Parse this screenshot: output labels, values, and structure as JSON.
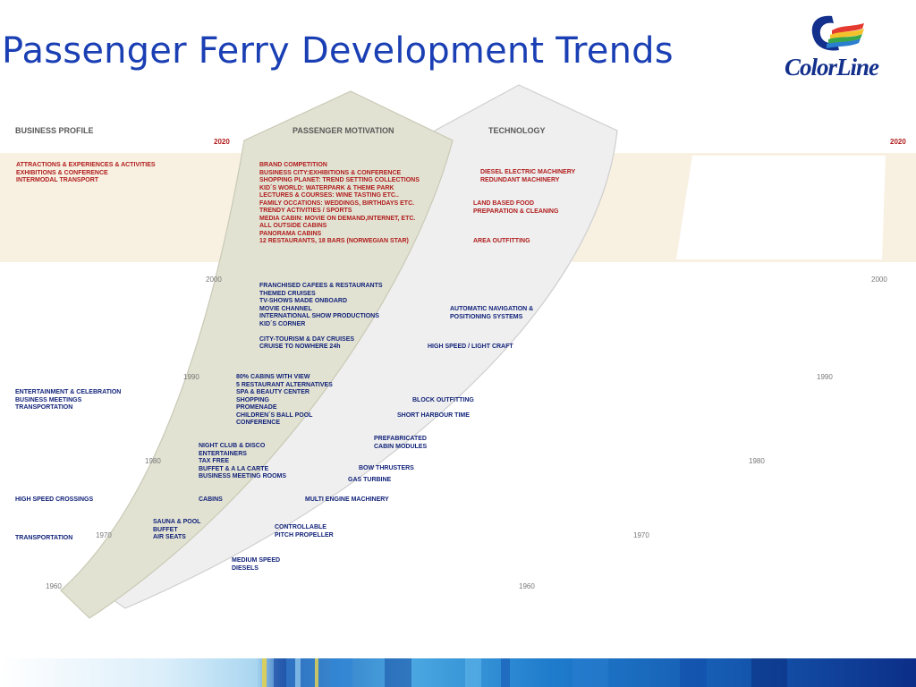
{
  "title": "Passenger Ferry Development Trends",
  "logo": {
    "text": "ColorLine"
  },
  "headers": {
    "business_profile": "BUSINESS PROFILE",
    "passenger_motivation": "PASSENGER MOTIVATION",
    "technology": "TECHNOLOGY"
  },
  "years": {
    "y2020": "2020",
    "y2000": "2000",
    "y1990": "1990",
    "y1980": "1980",
    "y1970": "1970",
    "y1960": "1960"
  },
  "business_2020": [
    "ATTRACTIONS & EXPERIENCES & ACTIVITIES",
    "EXHIBITIONS & CONFERENCE",
    "INTERMODAL TRANSPORT"
  ],
  "motivation_2020": [
    "BRAND COMPETITION",
    "BUSINESS CITY:EXHIBITIONS & CONFERENCE",
    "SHOPPING PLANET: TREND SETTING COLLECTIONS",
    "KID´S  WORLD: WATERPARK & THEME PARK",
    "LECTURES & COURSES: WINE TASTING ETC..",
    "FAMILY OCCATIONS: WEDDINGS, BIRTHDAYS ETC.",
    "TRENDY ACTIVITIES / SPORTS",
    "MEDIA CABIN: MOVIE ON DEMAND,INTERNET, ETC.",
    "ALL OUTSIDE CABINS",
    "PANORAMA CABINS",
    "12  RESTAURANTS, 18 BARS (NORWEGIAN STAR)"
  ],
  "tech_2020_a": [
    "DIESEL ELECTRIC MACHINERY",
    "REDUNDANT MACHINERY"
  ],
  "tech_2020_b": [
    "LAND BASED FOOD",
    "PREPARATION & CLEANING"
  ],
  "tech_2020_c": [
    "AREA OUTFITTING"
  ],
  "motivation_2000": [
    "FRANCHISED CAFEES & RESTAURANTS",
    "THEMED CRUISES",
    "TV-SHOWS MADE ONBOARD",
    "MOVIE CHANNEL",
    "INTERNATIONAL SHOW PRODUCTIONS",
    "KID´S CORNER",
    "",
    "CITY-TOURISM & DAY CRUISES",
    "CRUISE TO NOWHERE 24h"
  ],
  "tech_2000_a": [
    "AUTOMATIC NAVIGATION &",
    "POSITIONING SYSTEMS"
  ],
  "tech_2000_b": [
    "HIGH SPEED / LIGHT CRAFT"
  ],
  "business_1990": [
    "ENTERTAINMENT & CELEBRATION",
    "BUSINESS MEETINGS",
    "TRANSPORTATION"
  ],
  "motivation_1990": [
    "80% CABINS WITH VIEW",
    "5  RESTAURANT ALTERNATIVES",
    "SPA & BEAUTY CENTER",
    "SHOPPING",
    "PROMENADE",
    "CHILDREN´S BALL POOL",
    "CONFERENCE"
  ],
  "tech_1990_a": [
    "BLOCK OUTFITTING"
  ],
  "tech_1990_b": [
    "SHORT HARBOUR TIME"
  ],
  "tech_1990_c": [
    "PREFABRICATED",
    "CABIN MODULES"
  ],
  "motivation_1980": [
    "NIGHT CLUB & DISCO",
    "ENTERTAINERS",
    "TAX FREE",
    "BUFFET & A LA CARTE",
    "BUSINESS MEETING ROOMS"
  ],
  "tech_1980_a": [
    "BOW THRUSTERS"
  ],
  "tech_1980_b": [
    "GAS TURBINE"
  ],
  "business_1975": [
    "HIGH SPEED CROSSINGS"
  ],
  "motivation_1975": [
    "CABINS"
  ],
  "tech_1975": [
    "MULTI ENGINE MACHINERY"
  ],
  "motivation_1970": [
    "SAUNA & POOL",
    "BUFFET",
    "AIR SEATS"
  ],
  "tech_1970": [
    "CONTROLLABLE",
    "PITCH PROPELLER"
  ],
  "business_1970": [
    "TRANSPORTATION"
  ],
  "tech_1965": [
    "MEDIUM SPEED",
    "DIESELS"
  ],
  "colors": {
    "title": "#1a3fb4",
    "red_text": "#b01c1c",
    "navy_text": "#12237a",
    "band_2020": "#f8f1e2",
    "motivation_fill": "#e2e2d2",
    "technology_fill": "#eeeeee"
  }
}
